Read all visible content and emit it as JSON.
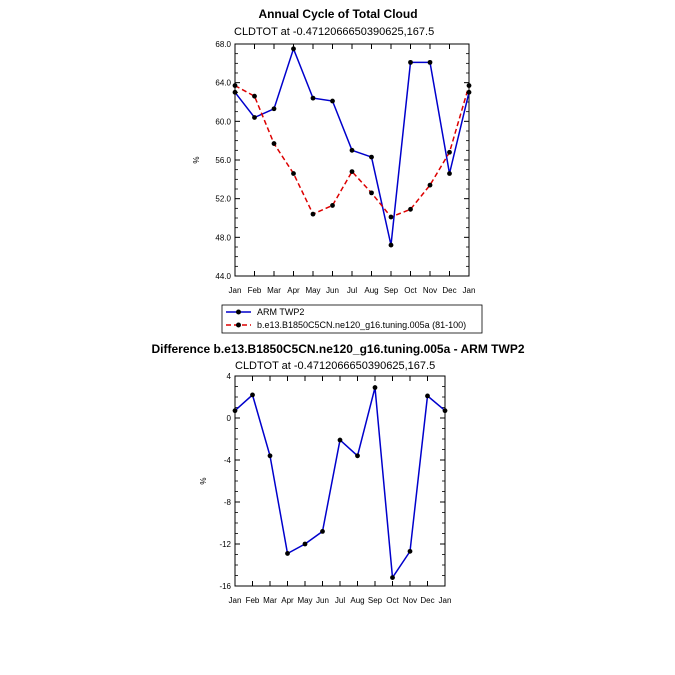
{
  "chart_data": [
    {
      "type": "line",
      "title": "Annual Cycle of Total Cloud",
      "subtitle": "CLDTOT at -0.4712066650390625,167.5",
      "ylabel": "%",
      "categories": [
        "Jan",
        "Feb",
        "Mar",
        "Apr",
        "May",
        "Jun",
        "Jul",
        "Aug",
        "Sep",
        "Oct",
        "Nov",
        "Dec",
        "Jan"
      ],
      "ylim": [
        44.0,
        68.0
      ],
      "yticks": [
        "44.0",
        "48.0",
        "52.0",
        "56.0",
        "60.0",
        "64.0",
        "68.0"
      ],
      "series": [
        {
          "name": "ARM TWP2",
          "color": "#0000cc",
          "dash": "solid",
          "values": [
            63.0,
            60.4,
            61.3,
            67.5,
            62.4,
            62.1,
            57.0,
            56.3,
            47.2,
            66.1,
            66.1,
            54.6,
            63.0
          ]
        },
        {
          "name": "b.e13.B1850C5CN.ne120_g16.tuning.005a (81-100)",
          "color": "#dd0000",
          "dash": "dashed",
          "values": [
            63.7,
            62.6,
            57.7,
            54.6,
            50.4,
            51.3,
            54.8,
            52.6,
            50.1,
            50.9,
            53.4,
            56.8,
            63.7
          ]
        }
      ],
      "legend": "below"
    },
    {
      "type": "line",
      "title": "Difference b.e13.B1850C5CN.ne120_g16.tuning.005a - ARM TWP2",
      "subtitle": "CLDTOT at -0.4712066650390625,167.5",
      "ylabel": "%",
      "categories": [
        "Jan",
        "Feb",
        "Mar",
        "Apr",
        "May",
        "Jun",
        "Jul",
        "Aug",
        "Sep",
        "Oct",
        "Nov",
        "Dec",
        "Jan"
      ],
      "ylim": [
        -16,
        4
      ],
      "yticks": [
        "-16",
        "-12",
        "-8",
        "-4",
        "0",
        "4"
      ],
      "series": [
        {
          "color": "#0000cc",
          "dash": "solid",
          "values": [
            0.7,
            2.2,
            -3.6,
            -12.9,
            -12.0,
            -10.8,
            -2.1,
            -3.6,
            2.9,
            -15.2,
            -12.7,
            2.1,
            0.7
          ]
        }
      ]
    }
  ]
}
